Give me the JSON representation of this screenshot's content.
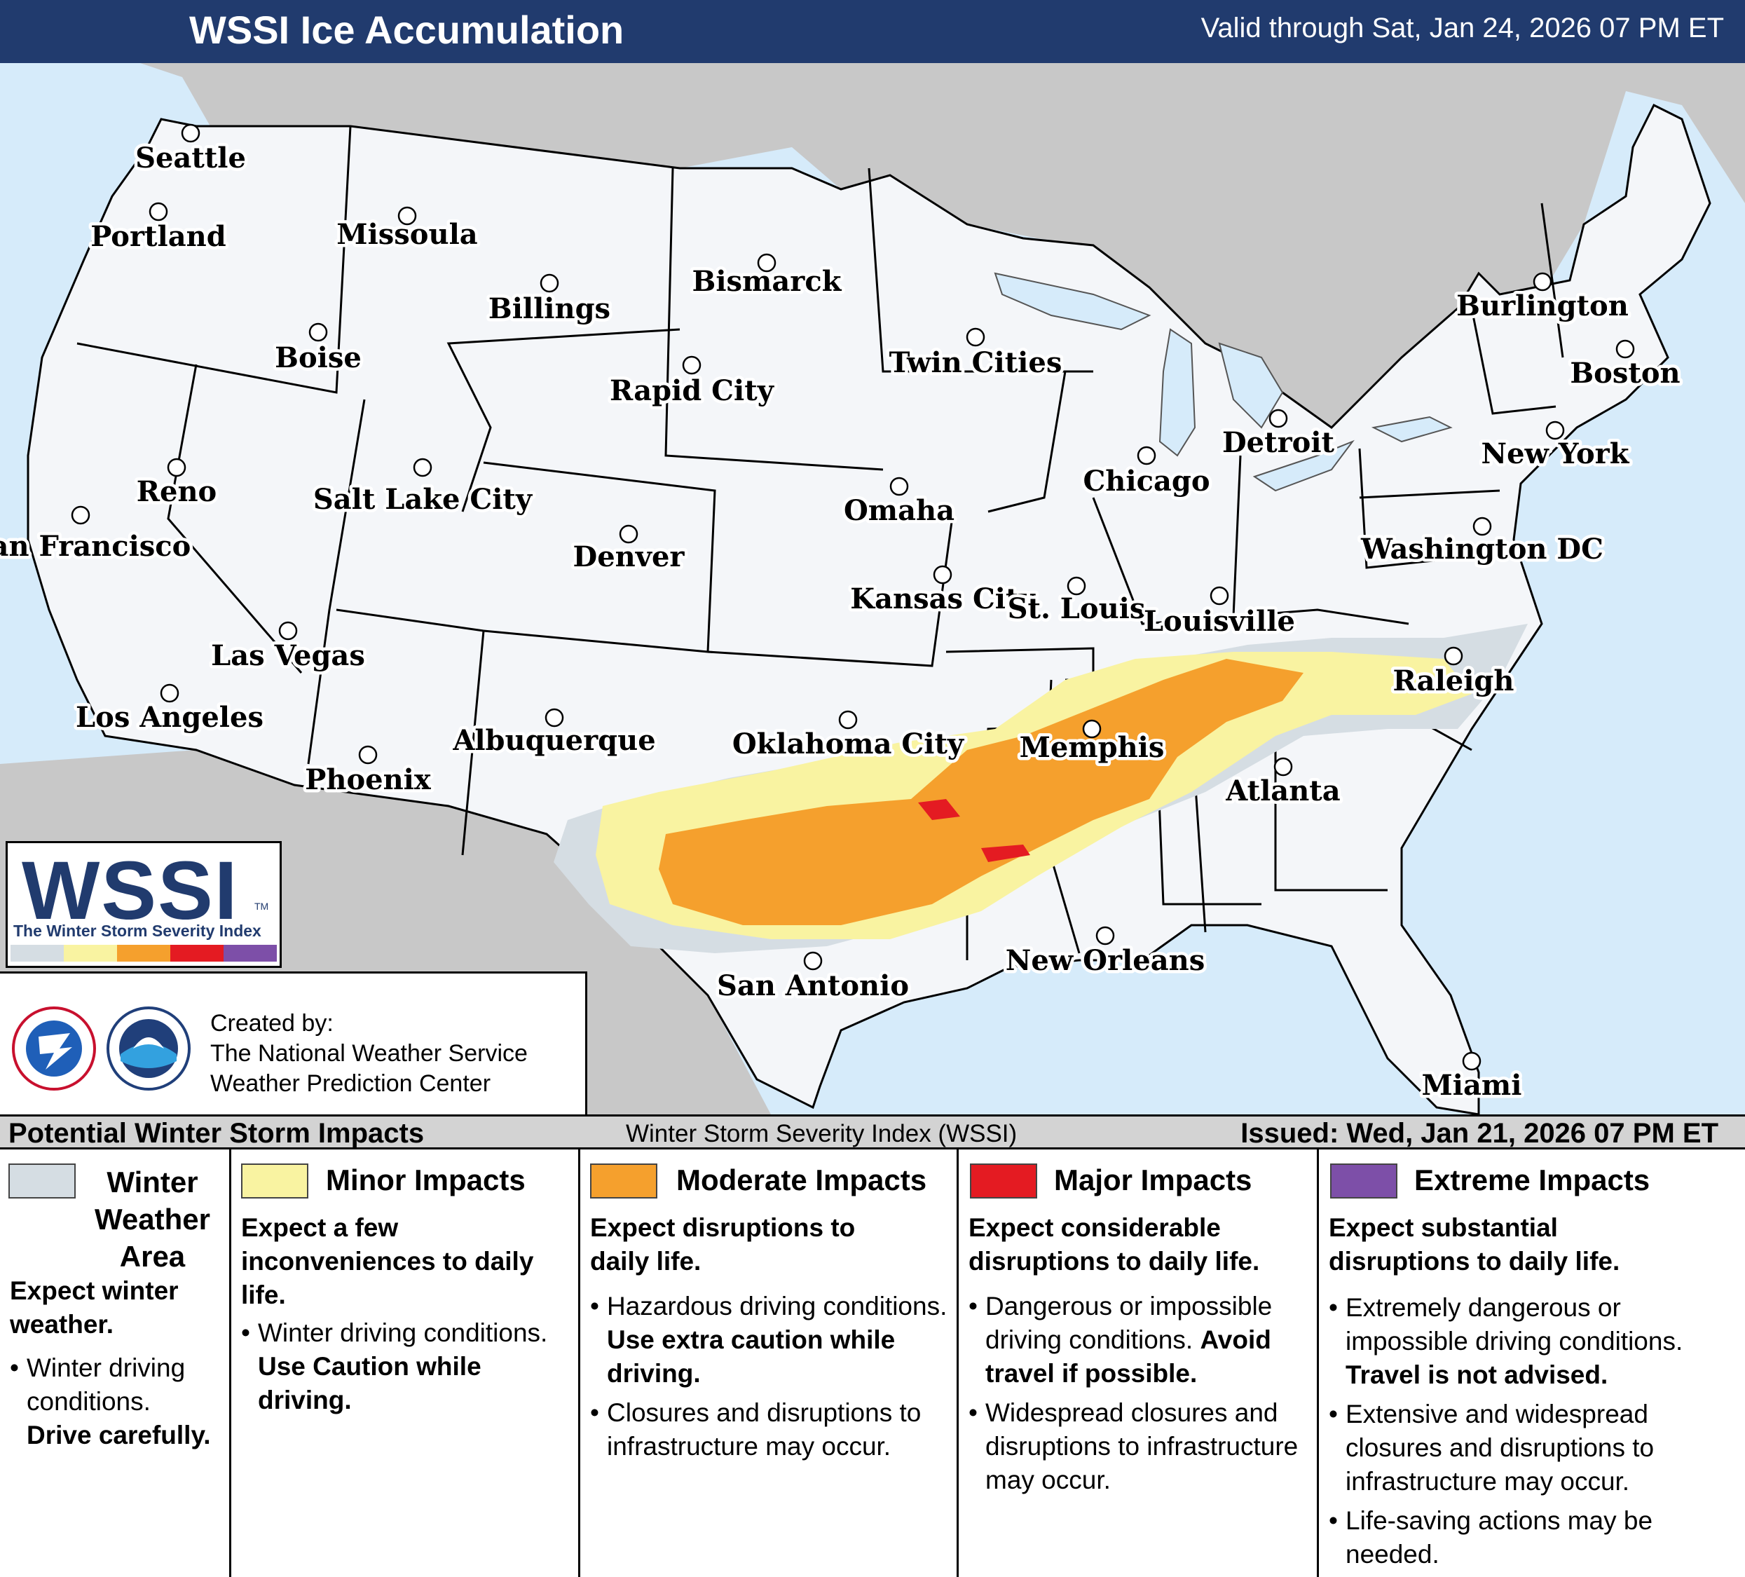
{
  "header": {
    "title": "WSSI Ice Accumulation",
    "valid": "Valid through Sat, Jan 24, 2026 07 PM ET"
  },
  "colors": {
    "header_bg": "#213b6e",
    "land": "#f4f6f9",
    "water": "#d6ebfa",
    "foreign_land": "#c8c8c8",
    "winter_area": "#d5dde3",
    "minor": "#f9f3a1",
    "moderate": "#f5a02d",
    "major": "#e41b22",
    "extreme": "#7d4fa8"
  },
  "cities": [
    {
      "name": "Seattle"
    },
    {
      "name": "Portland"
    },
    {
      "name": "Missoula"
    },
    {
      "name": "Bismarck"
    },
    {
      "name": "Billings"
    },
    {
      "name": "Burlington"
    },
    {
      "name": "Boise"
    },
    {
      "name": "Twin Cities"
    },
    {
      "name": "Boston"
    },
    {
      "name": "Rapid City"
    },
    {
      "name": "Detroit"
    },
    {
      "name": "New York"
    },
    {
      "name": "Reno"
    },
    {
      "name": "Salt Lake City"
    },
    {
      "name": "Chicago"
    },
    {
      "name": "Omaha"
    },
    {
      "name": "San Francisco"
    },
    {
      "name": "Denver"
    },
    {
      "name": "Washington DC"
    },
    {
      "name": "Kansas City"
    },
    {
      "name": "St. Louis"
    },
    {
      "name": "Louisville"
    },
    {
      "name": "Las Vegas"
    },
    {
      "name": "Raleigh"
    },
    {
      "name": "Los Angeles"
    },
    {
      "name": "Oklahoma City"
    },
    {
      "name": "Memphis"
    },
    {
      "name": "Albuquerque"
    },
    {
      "name": "Phoenix"
    },
    {
      "name": "Atlanta"
    },
    {
      "name": "New Orleans"
    },
    {
      "name": "San Antonio"
    },
    {
      "name": "Miami"
    }
  ],
  "logo": {
    "text": "WSSI",
    "tm": "TM",
    "subtitle": "The Winter Storm Severity Index"
  },
  "credit": {
    "line1": "Created by:",
    "line2": "The National Weather Service",
    "line3": "Weather Prediction Center"
  },
  "legend_bar": {
    "left": "Potential Winter Storm Impacts",
    "mid": "Winter Storm Severity Index (WSSI)",
    "right": "Issued: Wed, Jan 21, 2026 07 PM ET"
  },
  "legend": {
    "winter": {
      "title_l1": "Winter",
      "title_l2": "Weather",
      "title_l3": "Area",
      "expect_l1": "Expect winter",
      "expect_l2": "weather.",
      "b1_a": "Winter driving conditions.",
      "b1_b": "Drive carefully."
    },
    "minor": {
      "title": "Minor Impacts",
      "expect": "Expect a few inconveniences to daily life.",
      "b1_a": "Winter driving conditions.",
      "b1_b": "Use Caution while driving."
    },
    "moderate": {
      "title": "Moderate Impacts",
      "expect": "Expect disruptions to daily life.",
      "b1_a": "Hazardous driving conditions.",
      "b1_b": "Use extra caution while driving.",
      "b2": "Closures and disruptions to infrastructure may occur."
    },
    "major": {
      "title": "Major Impacts",
      "expect": "Expect considerable disruptions to daily life.",
      "b1_a": "Dangerous or impossible driving conditions.",
      "b1_b": "Avoid travel if possible.",
      "b2": "Widespread closures and disruptions to infrastructure may occur."
    },
    "extreme": {
      "title": "Extreme Impacts",
      "expect": "Expect substantial disruptions to daily life.",
      "b1_a": "Extremely dangerous or impossible driving conditions.",
      "b1_b": "Travel is not advised.",
      "b2": "Extensive and widespread closures and disruptions to infrastructure may occur.",
      "b3": "Life-saving actions may be needed."
    }
  }
}
